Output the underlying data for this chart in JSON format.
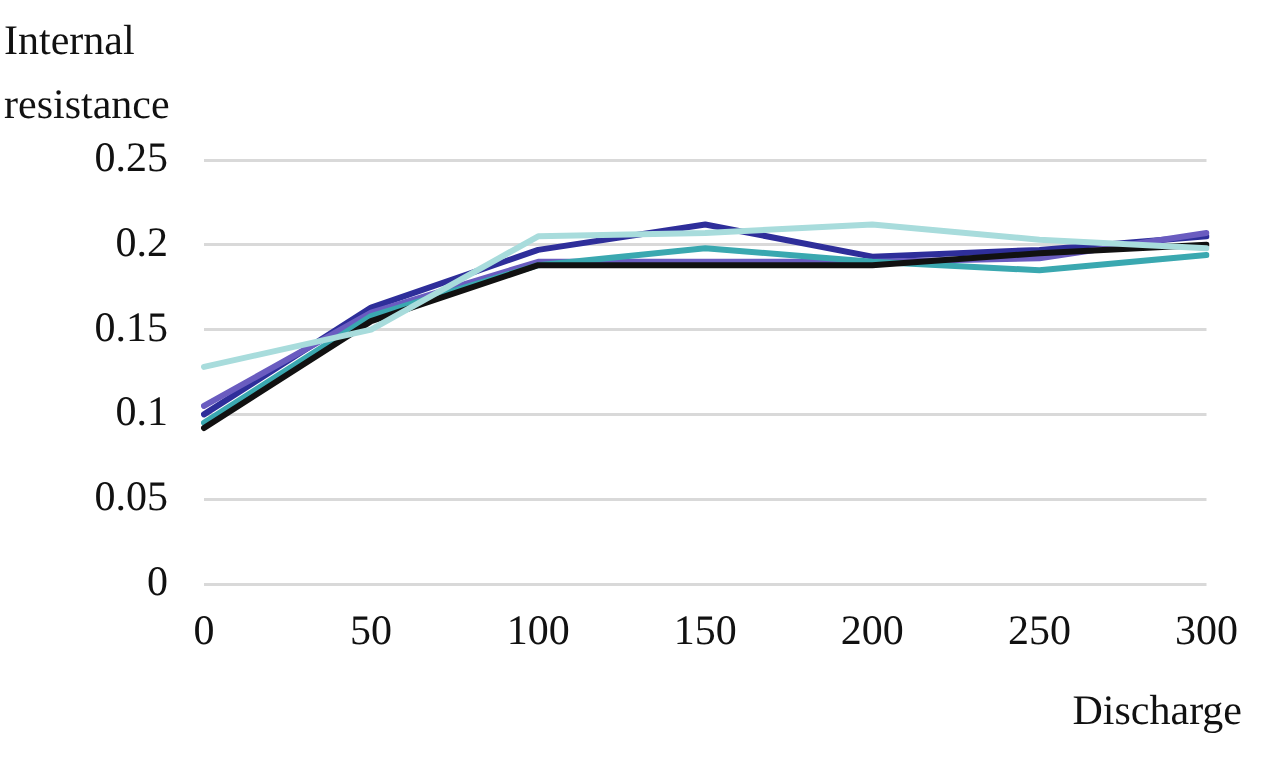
{
  "chart_data": {
    "type": "line",
    "xlabel": "Discharge",
    "ylabel": "Internal resistance",
    "categories": [
      "0",
      "50",
      "100",
      "150",
      "200",
      "250",
      "300"
    ],
    "series": [
      {
        "color": "#a8dcdc",
        "values": [
          0.128,
          0.15,
          0.205,
          0.207,
          0.212,
          0.203,
          0.198
        ]
      },
      {
        "color": "#111111",
        "values": [
          0.092,
          0.155,
          0.188,
          0.188,
          0.188,
          0.195,
          0.2
        ]
      },
      {
        "color": "#3aa8b0",
        "values": [
          0.095,
          0.158,
          0.188,
          0.198,
          0.19,
          0.185,
          0.194
        ]
      },
      {
        "color": "#6a5cc0",
        "values": [
          0.105,
          0.16,
          0.19,
          0.19,
          0.19,
          0.192,
          0.207
        ]
      },
      {
        "color": "#2e2e9a",
        "values": [
          0.1,
          0.163,
          0.197,
          0.212,
          0.193,
          0.197,
          0.205
        ]
      }
    ],
    "ylim": [
      0,
      0.25
    ],
    "yticks": [
      0,
      0.05,
      0.1,
      0.15,
      0.2,
      0.25
    ],
    "grid": "y",
    "legend": false,
    "marker": "none",
    "line_style": "solid"
  }
}
